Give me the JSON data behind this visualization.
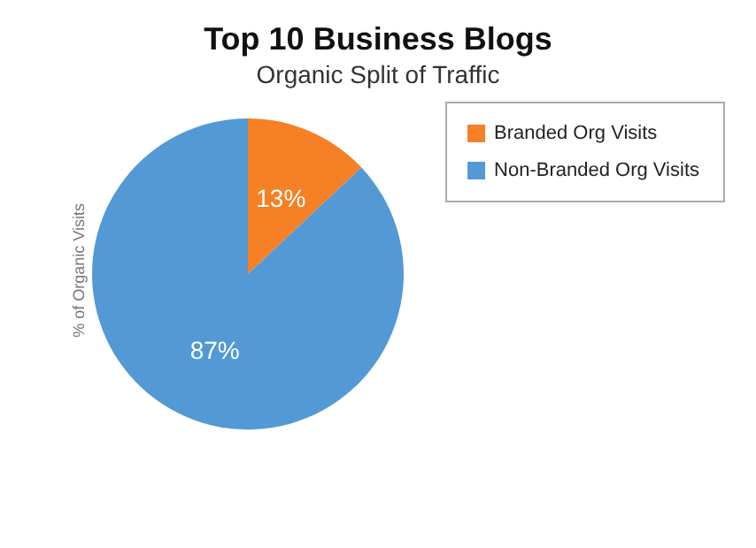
{
  "chart_data": {
    "type": "pie",
    "title": "Top 10 Business Blogs",
    "subtitle": "Organic Split of Traffic",
    "ylabel": "% of Organic Visits",
    "categories": [
      "Branded Org Visits",
      "Non-Branded Org Visits"
    ],
    "values": [
      13,
      87
    ],
    "colors": [
      "#f58025",
      "#5399d6"
    ],
    "value_labels": [
      "13%",
      "87%"
    ],
    "legend": "right"
  }
}
